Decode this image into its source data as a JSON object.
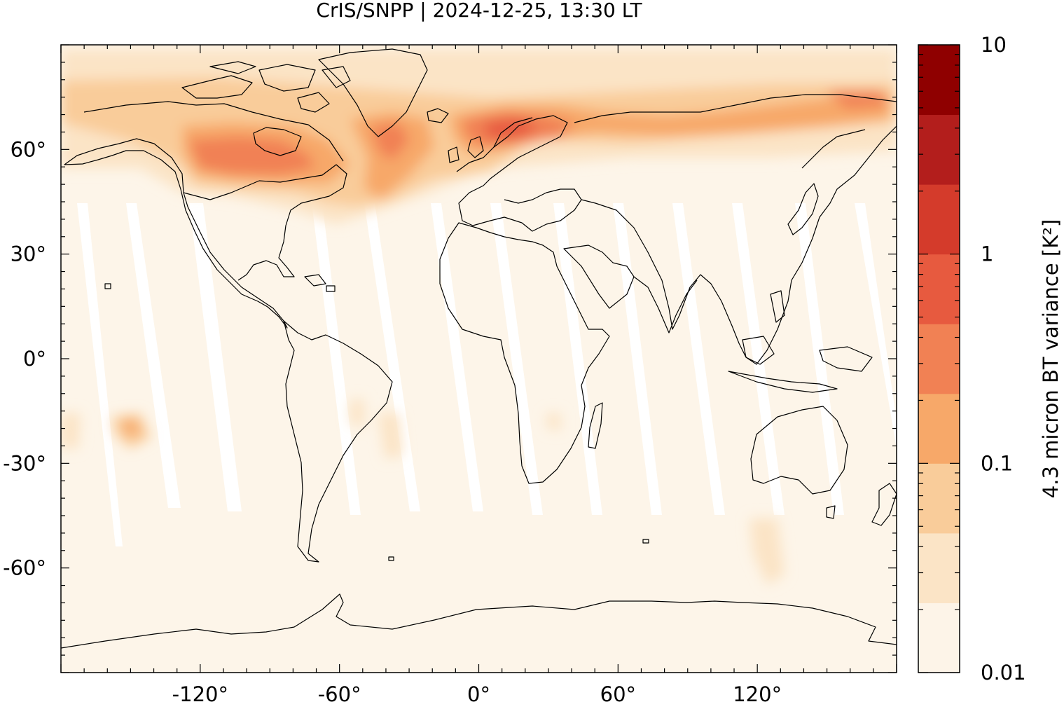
{
  "title": "CrIS/SNPP | 2024-12-25, 13:30 LT",
  "map": {
    "projection": "equirectangular",
    "lon_range": [
      -180,
      180
    ],
    "lat_range": [
      -90,
      90
    ],
    "lon_ticks": [
      {
        "value": -120,
        "label": "-120°"
      },
      {
        "value": -60,
        "label": "-60°"
      },
      {
        "value": 0,
        "label": "0°"
      },
      {
        "value": 60,
        "label": "60°"
      },
      {
        "value": 120,
        "label": "120°"
      }
    ],
    "lat_ticks": [
      {
        "value": 60,
        "label": "60°"
      },
      {
        "value": 30,
        "label": "30°"
      },
      {
        "value": 0,
        "label": "0°"
      },
      {
        "value": -30,
        "label": "-30°"
      },
      {
        "value": -60,
        "label": "-60°"
      }
    ],
    "background_color": "#fdf5e9",
    "coastline_color": "#000000"
  },
  "colorbar": {
    "label": "4.3 micron BT variance [K²]",
    "scale": "log",
    "range": [
      0.01,
      10
    ],
    "tick_labels": [
      {
        "value": 10,
        "label": "10"
      },
      {
        "value": 1,
        "label": "1"
      },
      {
        "value": 0.1,
        "label": "0.1"
      },
      {
        "value": 0.01,
        "label": "0.01"
      }
    ],
    "colors": [
      "#fff5eb",
      "#fee6ce",
      "#fdd0a2",
      "#fdae6b",
      "#fd8d3c",
      "#f16913",
      "#e6552d",
      "#d4342a",
      "#b01c1c",
      "#8b0000"
    ],
    "display_colors": [
      "#fdf4e8",
      "#fbe4c6",
      "#f9cc9a",
      "#f7a869",
      "#f18154",
      "#e75a3f",
      "#d43b2b",
      "#b31e1c",
      "#8f0000"
    ]
  }
}
